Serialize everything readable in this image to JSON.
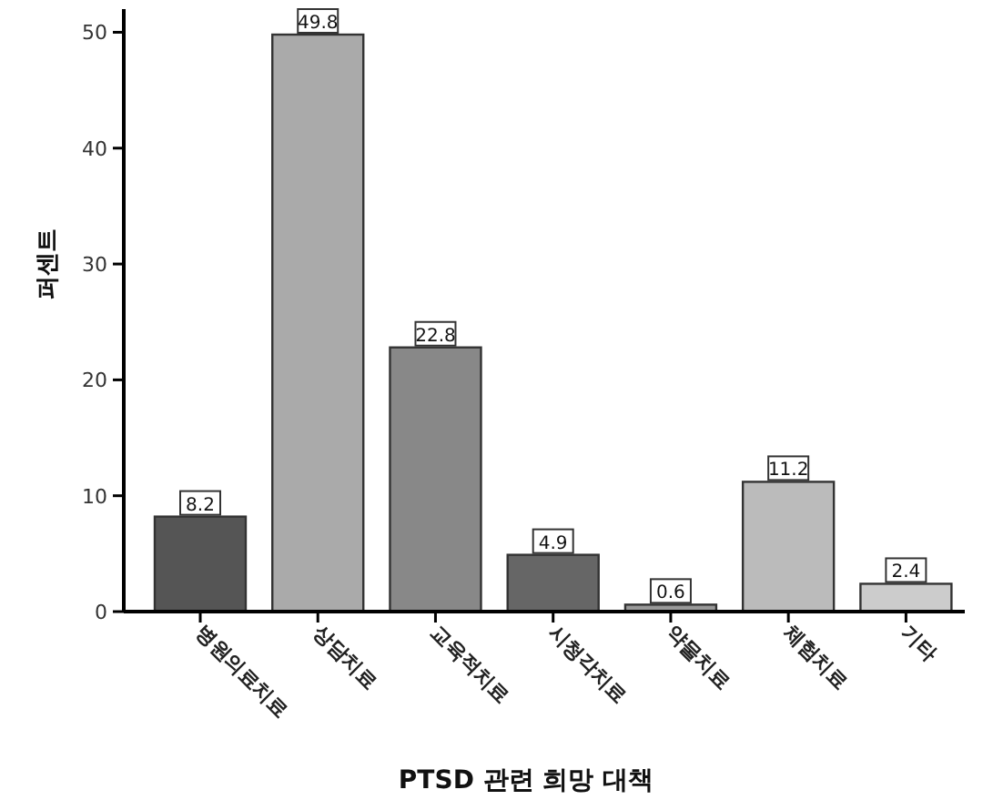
{
  "chart_data": {
    "type": "bar",
    "xlabel": "PTSD 관련 희망 대책",
    "ylabel": "퍼센트",
    "categories": [
      "병원의료치료",
      "상담치료",
      "교육적치료",
      "시청각치료",
      "약물치료",
      "체험치료",
      "기타"
    ],
    "values": [
      8.2,
      49.8,
      22.8,
      4.9,
      0.6,
      11.2,
      2.4
    ],
    "colors": [
      "#555555",
      "#aaaaaa",
      "#888888",
      "#666666",
      "#999999",
      "#bbbbbb",
      "#cccccc"
    ],
    "ylim": [
      0,
      52
    ],
    "yticks": [
      0,
      10,
      20,
      30,
      40,
      50
    ],
    "data_labels": true
  }
}
